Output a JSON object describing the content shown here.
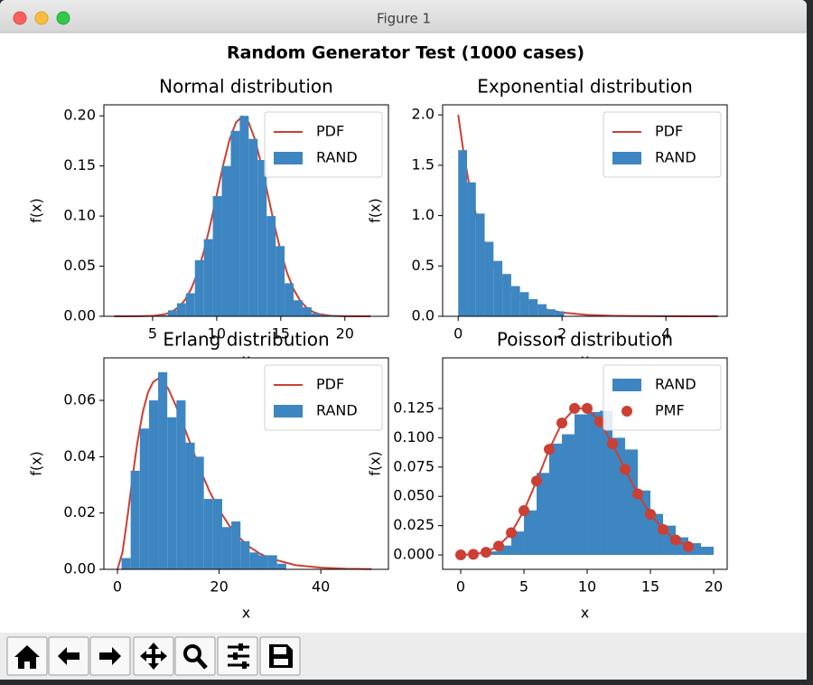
{
  "window_title": "Figure 1",
  "title": "Random Generator Test (1000 cases)",
  "chart_data": [
    {
      "type": "histogram",
      "title": "Normal distribution",
      "xlabel": "x",
      "ylabel": "f(x)",
      "xlim": [
        1.2,
        23.4
      ],
      "ylim": [
        0,
        0.211
      ],
      "xticks": [
        5,
        10,
        15,
        20
      ],
      "yticks": [
        {
          "value": 0,
          "label": "0.00"
        },
        {
          "value": 0.05,
          "label": "0.05"
        },
        {
          "value": 0.1,
          "label": "0.10"
        },
        {
          "value": 0.15,
          "label": "0.15"
        },
        {
          "value": 0.2,
          "label": "0.20"
        }
      ],
      "legend": "upper right",
      "series": [
        {
          "name": "PDF",
          "type": "line",
          "color": "#cc3f33",
          "x": [
            2,
            3,
            4,
            5,
            6,
            6.5,
            7,
            7.5,
            8,
            8.5,
            9,
            9.5,
            10,
            10.5,
            11,
            11.5,
            12,
            12.5,
            13,
            13.5,
            14,
            14.5,
            15,
            15.5,
            16,
            16.5,
            17,
            17.5,
            18,
            19,
            20,
            21,
            22
          ],
          "values": [
            0,
            0,
            0.0001,
            0.0004,
            0.0022,
            0.0045,
            0.0088,
            0.0159,
            0.027,
            0.0431,
            0.0648,
            0.0913,
            0.121,
            0.1506,
            0.176,
            0.1933,
            0.1995,
            0.1933,
            0.176,
            0.1506,
            0.121,
            0.0913,
            0.0648,
            0.0431,
            0.027,
            0.0159,
            0.0088,
            0.0045,
            0.0022,
            0.0004,
            0.0001,
            0,
            0
          ]
        },
        {
          "name": "RAND",
          "type": "histogram",
          "color": "#3d86c1",
          "bins": [
            5.5,
            6.2,
            6.9,
            7.6,
            8.3,
            9.0,
            9.7,
            10.4,
            11.1,
            11.8,
            12.5,
            13.2,
            13.9,
            14.6,
            15.3,
            16.0,
            16.7,
            17.4,
            18.1,
            18.8,
            19.5
          ],
          "values": [
            0.001,
            0.006,
            0.013,
            0.023,
            0.056,
            0.077,
            0.12,
            0.15,
            0.185,
            0.2,
            0.177,
            0.156,
            0.1,
            0.07,
            0.033,
            0.016,
            0.009,
            0.003,
            0.001,
            0.001
          ]
        }
      ]
    },
    {
      "type": "histogram",
      "title": "Exponential distribution",
      "xlabel": "x",
      "ylabel": "f(x)",
      "xlim": [
        -0.3,
        5.18
      ],
      "ylim": [
        0,
        2.1
      ],
      "xticks": [
        0,
        2,
        4
      ],
      "yticks": [
        {
          "value": 0,
          "label": "0.0"
        },
        {
          "value": 0.5,
          "label": "0.5"
        },
        {
          "value": 1,
          "label": "1.0"
        },
        {
          "value": 1.5,
          "label": "1.5"
        },
        {
          "value": 2,
          "label": "2.0"
        }
      ],
      "legend": "upper right",
      "series": [
        {
          "name": "PDF",
          "type": "line",
          "color": "#cc3f33",
          "x": [
            0,
            0.1,
            0.2,
            0.3,
            0.4,
            0.5,
            0.625,
            0.75,
            0.875,
            1,
            1.25,
            1.5,
            1.75,
            2,
            2.5,
            3,
            3.5,
            4,
            4.5,
            5
          ],
          "values": [
            2,
            1.6375,
            1.3406,
            1.0976,
            0.8987,
            0.7358,
            0.573,
            0.4463,
            0.3475,
            0.2707,
            0.1642,
            0.0996,
            0.0604,
            0.0366,
            0.0135,
            0.005,
            0.0018,
            0.0007,
            0.0002,
            0.0001
          ]
        },
        {
          "name": "RAND",
          "type": "histogram",
          "color": "#3d86c1",
          "bins": [
            0,
            0.17,
            0.34,
            0.51,
            0.68,
            0.85,
            1.02,
            1.19,
            1.36,
            1.53,
            1.7,
            1.87,
            2.04
          ],
          "values": [
            1.65,
            1.33,
            1.02,
            0.74,
            0.55,
            0.42,
            0.3,
            0.24,
            0.17,
            0.12,
            0.07,
            0.05
          ]
        }
      ]
    },
    {
      "type": "histogram",
      "title": "Erlang distribution",
      "xlabel": "x",
      "ylabel": "f(x)",
      "xlim": [
        -2.67,
        53.3
      ],
      "ylim": [
        0,
        0.0751
      ],
      "xticks": [
        0,
        20,
        40
      ],
      "yticks": [
        {
          "value": 0,
          "label": "0.00"
        },
        {
          "value": 0.02,
          "label": "0.02"
        },
        {
          "value": 0.04,
          "label": "0.04"
        },
        {
          "value": 0.06,
          "label": "0.06"
        }
      ],
      "legend": "upper right",
      "series": [
        {
          "name": "PDF",
          "type": "line",
          "color": "#cc3f33",
          "x": [
            0,
            1,
            2,
            3,
            4,
            5,
            6,
            7,
            8,
            9,
            10,
            12,
            14,
            16,
            18,
            20,
            22,
            24,
            26,
            28,
            30,
            35,
            40,
            45,
            50
          ],
          "values": [
            0,
            0.0061,
            0.019,
            0.0332,
            0.046,
            0.056,
            0.0628,
            0.0665,
            0.0677,
            0.0667,
            0.0641,
            0.056,
            0.0463,
            0.0366,
            0.0281,
            0.0211,
            0.0155,
            0.0112,
            0.0079,
            0.0056,
            0.0039,
            0.0015,
            0.0006,
            0.0002,
            0.0001
          ]
        },
        {
          "name": "RAND",
          "type": "histogram",
          "color": "#3d86c1",
          "bins": [
            0.8,
            2.6,
            4.4,
            6.2,
            8,
            9.8,
            11.6,
            13.4,
            15.2,
            17,
            18.8,
            20.6,
            22.4,
            24.2,
            26,
            27.8,
            29.6,
            31.4,
            33.2
          ],
          "values": [
            0.004,
            0.035,
            0.05,
            0.06,
            0.07,
            0.054,
            0.06,
            0.045,
            0.04,
            0.025,
            0.025,
            0.015,
            0.017,
            0.01,
            0.006,
            0.005,
            0.005,
            0.002
          ]
        }
      ]
    },
    {
      "type": "histogram",
      "title": "Poisson distribution",
      "xlabel": "x",
      "ylabel": "f(x)",
      "xlim": [
        -1.43,
        21.07
      ],
      "ylim": [
        -0.0123,
        0.1682
      ],
      "xticks": [
        0,
        5,
        10,
        15,
        20
      ],
      "yticks": [
        {
          "value": 0,
          "label": "0.000"
        },
        {
          "value": 0.025,
          "label": "0.025"
        },
        {
          "value": 0.05,
          "label": "0.050"
        },
        {
          "value": 0.075,
          "label": "0.075"
        },
        {
          "value": 0.1,
          "label": "0.100"
        },
        {
          "value": 0.125,
          "label": "0.125"
        }
      ],
      "legend": "upper right",
      "series": [
        {
          "name": "RAND",
          "type": "histogram",
          "color": "#3d86c1",
          "bins": [
            2,
            3,
            4,
            5,
            6,
            7,
            8,
            9,
            10,
            11,
            12,
            13,
            14,
            15,
            16,
            17,
            18,
            19,
            20
          ],
          "values": [
            0.003,
            0.008,
            0.02,
            0.038,
            0.07,
            0.095,
            0.103,
            0.12,
            0.122,
            0.123,
            0.1,
            0.09,
            0.055,
            0.035,
            0.025,
            0.015,
            0.01,
            0.007
          ]
        },
        {
          "name": "PMF",
          "type": "line",
          "marker": "o",
          "color": "#cc3f33",
          "x": [
            0,
            1,
            2,
            3,
            4,
            5,
            6,
            7,
            8,
            9,
            10,
            11,
            12,
            13,
            14,
            15,
            16,
            17,
            18
          ],
          "values": [
            5e-05,
            0.0005,
            0.0023,
            0.0076,
            0.0189,
            0.0378,
            0.0631,
            0.0901,
            0.1126,
            0.1251,
            0.1251,
            0.1137,
            0.0948,
            0.0729,
            0.0521,
            0.0347,
            0.0217,
            0.0128,
            0.0071
          ]
        }
      ]
    }
  ]
}
